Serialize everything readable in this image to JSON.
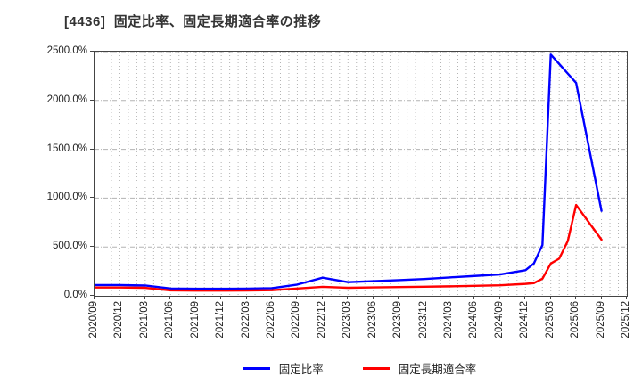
{
  "header": {
    "title": "[4436]  固定比率、固定長期適合率の推移"
  },
  "colors": {
    "series1": "#0000ff",
    "series2": "#ff0000",
    "grid": "#b3b3b3",
    "border": "#444444",
    "text": "#222222"
  },
  "chart_data": {
    "type": "line",
    "title": "[4436]  固定比率、固定長期適合率の推移",
    "xlabel": "",
    "ylabel": "",
    "ylim": [
      0,
      2500
    ],
    "grid": "on",
    "legend_position": "bottom-center",
    "x_minor_divisions_per_category": 3,
    "y_ticks": [
      [
        0,
        "0.0%"
      ],
      [
        500,
        "500.0%"
      ],
      [
        1000,
        "1000.0%"
      ],
      [
        1500,
        "1500.0%"
      ],
      [
        2000,
        "2000.0%"
      ],
      [
        2500,
        "2500.0%"
      ]
    ],
    "categories": [
      "2020/09",
      "2020/12",
      "2021/03",
      "2021/06",
      "2021/09",
      "2021/12",
      "2022/03",
      "2022/06",
      "2022/09",
      "2022/12",
      "2023/03",
      "2023/06",
      "2023/09",
      "2023/12",
      "2024/03",
      "2024/06",
      "2024/09",
      "2024/12",
      "2025/03",
      "2025/06",
      "2025/09",
      "2025/12"
    ],
    "series": [
      {
        "name": "固定比率",
        "color": "#0000ff",
        "values": [
          110,
          110,
          105,
          75,
          72,
          72,
          73,
          78,
          115,
          185,
          140,
          150,
          160,
          172,
          188,
          203,
          218,
          262,
          2470,
          2180,
          870,
          null
        ],
        "points": [
          [
            0,
            110
          ],
          [
            1,
            110
          ],
          [
            2,
            105
          ],
          [
            3,
            75
          ],
          [
            4,
            72
          ],
          [
            5,
            72
          ],
          [
            6,
            73
          ],
          [
            7,
            78
          ],
          [
            8,
            115
          ],
          [
            9,
            185
          ],
          [
            10,
            140
          ],
          [
            11,
            150
          ],
          [
            12,
            160
          ],
          [
            13,
            172
          ],
          [
            14,
            188
          ],
          [
            15,
            203
          ],
          [
            16,
            218
          ],
          [
            17,
            262
          ],
          [
            17.33,
            330
          ],
          [
            17.67,
            520
          ],
          [
            18,
            2470
          ],
          [
            19,
            2180
          ],
          [
            20,
            870
          ]
        ]
      },
      {
        "name": "固定長期適合率",
        "color": "#ff0000",
        "values": [
          85,
          85,
          82,
          55,
          53,
          53,
          54,
          58,
          75,
          92,
          82,
          86,
          90,
          93,
          97,
          102,
          108,
          122,
          330,
          930,
          575,
          null
        ],
        "points": [
          [
            0,
            85
          ],
          [
            1,
            85
          ],
          [
            2,
            82
          ],
          [
            3,
            55
          ],
          [
            4,
            53
          ],
          [
            5,
            53
          ],
          [
            6,
            54
          ],
          [
            7,
            58
          ],
          [
            8,
            75
          ],
          [
            9,
            92
          ],
          [
            10,
            82
          ],
          [
            11,
            86
          ],
          [
            12,
            90
          ],
          [
            13,
            93
          ],
          [
            14,
            97
          ],
          [
            15,
            102
          ],
          [
            16,
            108
          ],
          [
            17,
            122
          ],
          [
            17.33,
            130
          ],
          [
            17.67,
            175
          ],
          [
            18,
            330
          ],
          [
            18.33,
            380
          ],
          [
            18.67,
            560
          ],
          [
            19,
            930
          ],
          [
            20,
            575
          ]
        ]
      }
    ]
  },
  "legend": {
    "items": [
      {
        "label": "固定比率",
        "color": "#0000ff"
      },
      {
        "label": "固定長期適合率",
        "color": "#ff0000"
      }
    ]
  }
}
